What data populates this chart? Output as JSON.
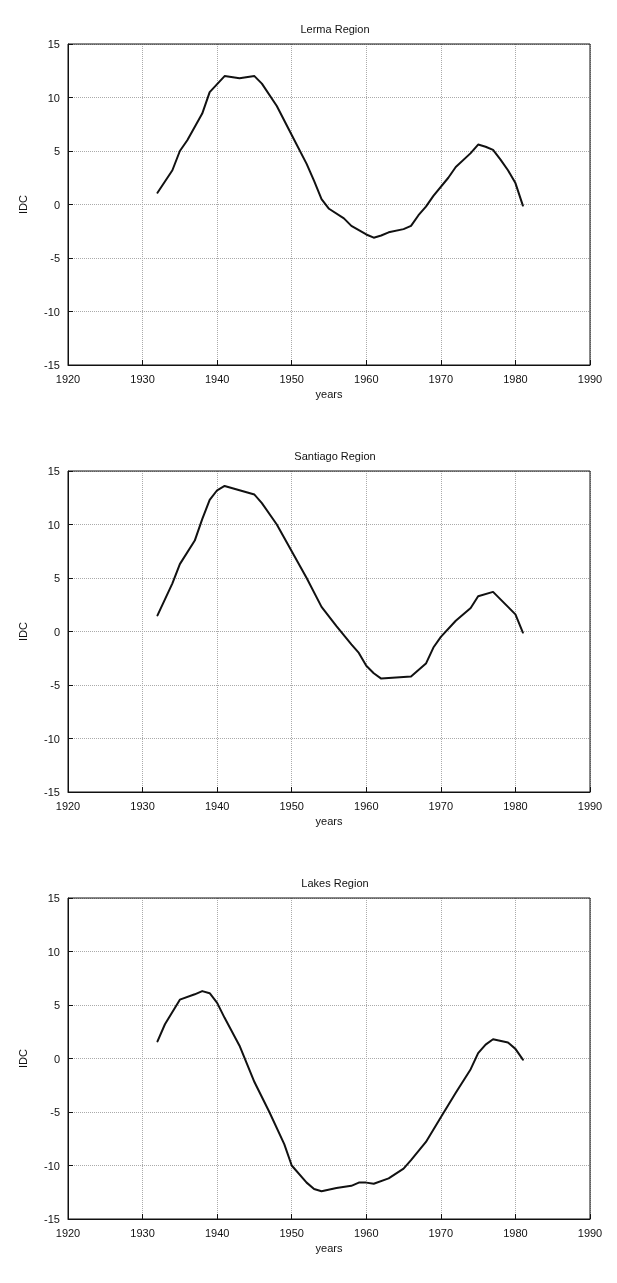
{
  "chart_data": [
    {
      "type": "line",
      "title": "Lerma Region",
      "xlabel": "years",
      "ylabel": "IDC",
      "xlim": [
        1920,
        1990
      ],
      "xticks": [
        1920,
        1930,
        1940,
        1950,
        1960,
        1970,
        1980,
        1990
      ],
      "ylim": [
        -15,
        15
      ],
      "yticks": [
        -15,
        -10,
        -5,
        0,
        5,
        10,
        15
      ],
      "grid": true,
      "marker": "none",
      "line_style": "solid",
      "series": [
        {
          "color": "#111111",
          "x": [
            1932,
            1934,
            1935,
            1936,
            1938,
            1939,
            1941,
            1943,
            1945,
            1946,
            1948,
            1950,
            1952,
            1953,
            1954,
            1955,
            1957,
            1958,
            1960,
            1961,
            1962,
            1963,
            1965,
            1966,
            1967,
            1968,
            1969,
            1971,
            1972,
            1974,
            1975,
            1976,
            1977,
            1978,
            1979,
            1980,
            1981
          ],
          "values": [
            1.1,
            3.2,
            5,
            6,
            8.5,
            10.5,
            12,
            11.8,
            12,
            11.3,
            9.2,
            6.5,
            3.8,
            2.2,
            0.5,
            -0.4,
            -1.3,
            -2,
            -2.8,
            -3.1,
            -2.9,
            -2.6,
            -2.3,
            -2,
            -1,
            -0.2,
            0.8,
            2.5,
            3.5,
            4.8,
            5.6,
            5.4,
            5.1,
            4.2,
            3.2,
            2,
            -0.1
          ]
        }
      ]
    },
    {
      "type": "line",
      "title": "Santiago Region",
      "xlabel": "years",
      "ylabel": "IDC",
      "xlim": [
        1920,
        1990
      ],
      "xticks": [
        1920,
        1930,
        1940,
        1950,
        1960,
        1970,
        1980,
        1990
      ],
      "ylim": [
        -15,
        15
      ],
      "yticks": [
        -15,
        -10,
        -5,
        0,
        5,
        10,
        15
      ],
      "grid": true,
      "marker": "none",
      "line_style": "solid",
      "series": [
        {
          "color": "#111111",
          "x": [
            1932,
            1934,
            1935,
            1937,
            1938,
            1939,
            1940,
            1941,
            1943,
            1945,
            1946,
            1948,
            1950,
            1952,
            1954,
            1956,
            1958,
            1959,
            1960,
            1961,
            1962,
            1964,
            1966,
            1968,
            1969,
            1970,
            1972,
            1974,
            1975,
            1977,
            1978,
            1980,
            1981
          ],
          "values": [
            1.5,
            4.5,
            6.3,
            8.5,
            10.5,
            12.3,
            13.2,
            13.6,
            13.2,
            12.8,
            12,
            10,
            7.5,
            5,
            2.3,
            0.5,
            -1.2,
            -2,
            -3.2,
            -3.9,
            -4.4,
            -4.3,
            -4.2,
            -3,
            -1.5,
            -0.5,
            1,
            2.2,
            3.3,
            3.7,
            3,
            1.6,
            -0.1
          ]
        }
      ]
    },
    {
      "type": "line",
      "title": "Lakes Region",
      "xlabel": "years",
      "ylabel": "IDC",
      "xlim": [
        1920,
        1990
      ],
      "xticks": [
        1920,
        1930,
        1940,
        1950,
        1960,
        1970,
        1980,
        1990
      ],
      "ylim": [
        -15,
        15
      ],
      "yticks": [
        -15,
        -10,
        -5,
        0,
        5,
        10,
        15
      ],
      "grid": true,
      "marker": "none",
      "line_style": "solid",
      "series": [
        {
          "color": "#111111",
          "x": [
            1932,
            1933,
            1935,
            1937,
            1938,
            1939,
            1940,
            1941,
            1943,
            1944,
            1945,
            1947,
            1949,
            1950,
            1952,
            1953,
            1954,
            1956,
            1958,
            1959,
            1960,
            1961,
            1963,
            1965,
            1966,
            1968,
            1970,
            1972,
            1974,
            1975,
            1976,
            1977,
            1979,
            1980,
            1981
          ],
          "values": [
            1.6,
            3.2,
            5.5,
            6,
            6.3,
            6.1,
            5.2,
            3.8,
            1.2,
            -0.5,
            -2.2,
            -5,
            -8,
            -10,
            -11.6,
            -12.2,
            -12.4,
            -12.1,
            -11.9,
            -11.6,
            -11.6,
            -11.7,
            -11.2,
            -10.3,
            -9.5,
            -7.8,
            -5.5,
            -3.2,
            -1,
            0.5,
            1.3,
            1.8,
            1.5,
            0.9,
            -0.1
          ]
        }
      ]
    }
  ]
}
